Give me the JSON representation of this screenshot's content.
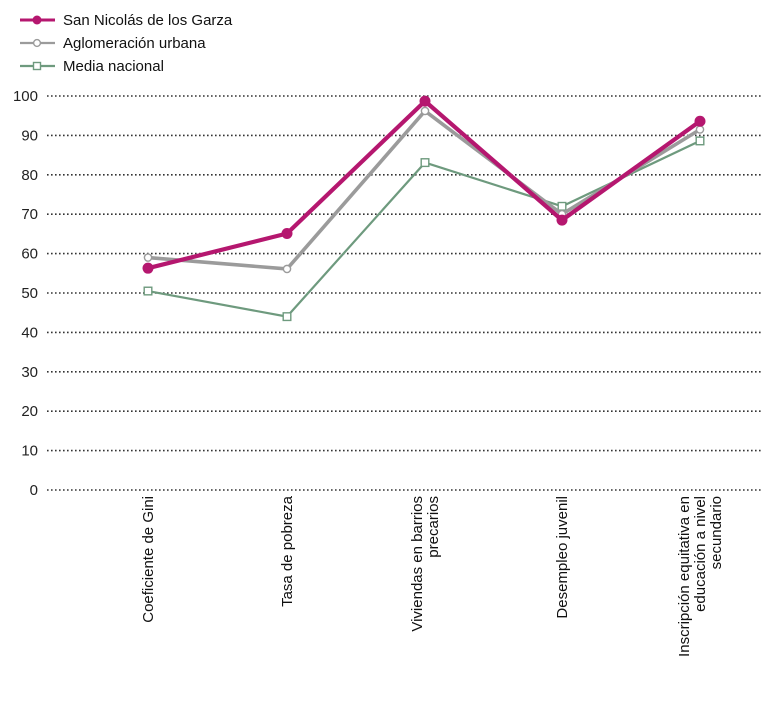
{
  "chart_data": {
    "type": "line",
    "title": "",
    "xlabel": "",
    "ylabel": "",
    "ylim": [
      0,
      100
    ],
    "yticks": [
      0,
      10,
      20,
      30,
      40,
      50,
      60,
      70,
      80,
      90,
      100
    ],
    "grid": "horizontal-dotted",
    "legend_position": "top-left",
    "categories": [
      [
        "Coeficiente de Gini"
      ],
      [
        "Tasa de pobreza"
      ],
      [
        "Viviendas en barrios",
        "precarios"
      ],
      [
        "Desempleo juvenil"
      ],
      [
        "Inscripción equitativa en",
        "educación a nivel",
        "secundario"
      ]
    ],
    "series": [
      {
        "name": "San Nicolás de los Garza",
        "values": [
          56.3,
          65.1,
          98.7,
          68.5,
          93.6
        ],
        "color": "#b5176f",
        "marker": "filled-circle"
      },
      {
        "name": "Aglomeración urbana",
        "values": [
          59.0,
          56.1,
          96.2,
          70.0,
          91.5
        ],
        "color": "#9b9b9b",
        "marker": "open-circle"
      },
      {
        "name": "Media nacional",
        "values": [
          50.5,
          44.0,
          83.1,
          72.0,
          88.6
        ],
        "color": "#6e9a7e",
        "marker": "open-square"
      }
    ]
  }
}
